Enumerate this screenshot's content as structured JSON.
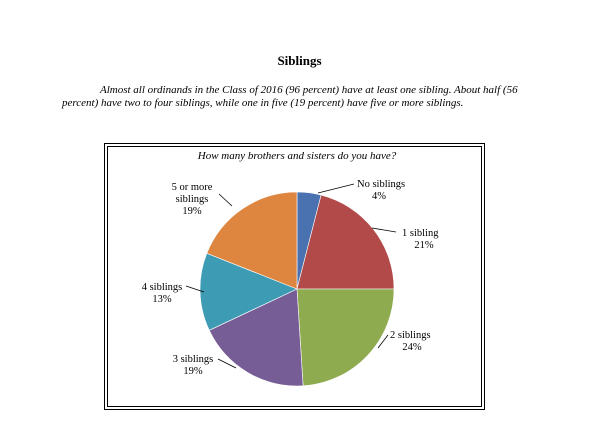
{
  "page": {
    "heading": "Siblings",
    "intro": "Almost all ordinands in the Class of 2016 (96 percent) have at least one sibling.  About half (56 percent) have two to four siblings, while one in five (19 percent) have five or more siblings."
  },
  "chart_data": {
    "type": "pie",
    "title": "How many brothers and sisters do you have?",
    "categories": [
      "No siblings",
      "1 sibling",
      "2 siblings",
      "3 siblings",
      "4 siblings",
      "5 or more siblings"
    ],
    "values": [
      4,
      21,
      24,
      19,
      13,
      19
    ],
    "value_labels": [
      "4%",
      "21%",
      "24%",
      "19%",
      "13%",
      "19%"
    ],
    "colors": [
      "#4a72b0",
      "#b14a48",
      "#8eab4f",
      "#775d96",
      "#3d9bb4",
      "#de8640"
    ],
    "label_lines": [
      [
        "No siblings",
        "4%"
      ],
      [
        "1 sibling",
        "21%"
      ],
      [
        "2 siblings",
        "24%"
      ],
      [
        "3 siblings",
        "19%"
      ],
      [
        "4 siblings",
        "13%"
      ],
      [
        "5 or more",
        "siblings",
        "19%"
      ]
    ],
    "legend": "none"
  }
}
